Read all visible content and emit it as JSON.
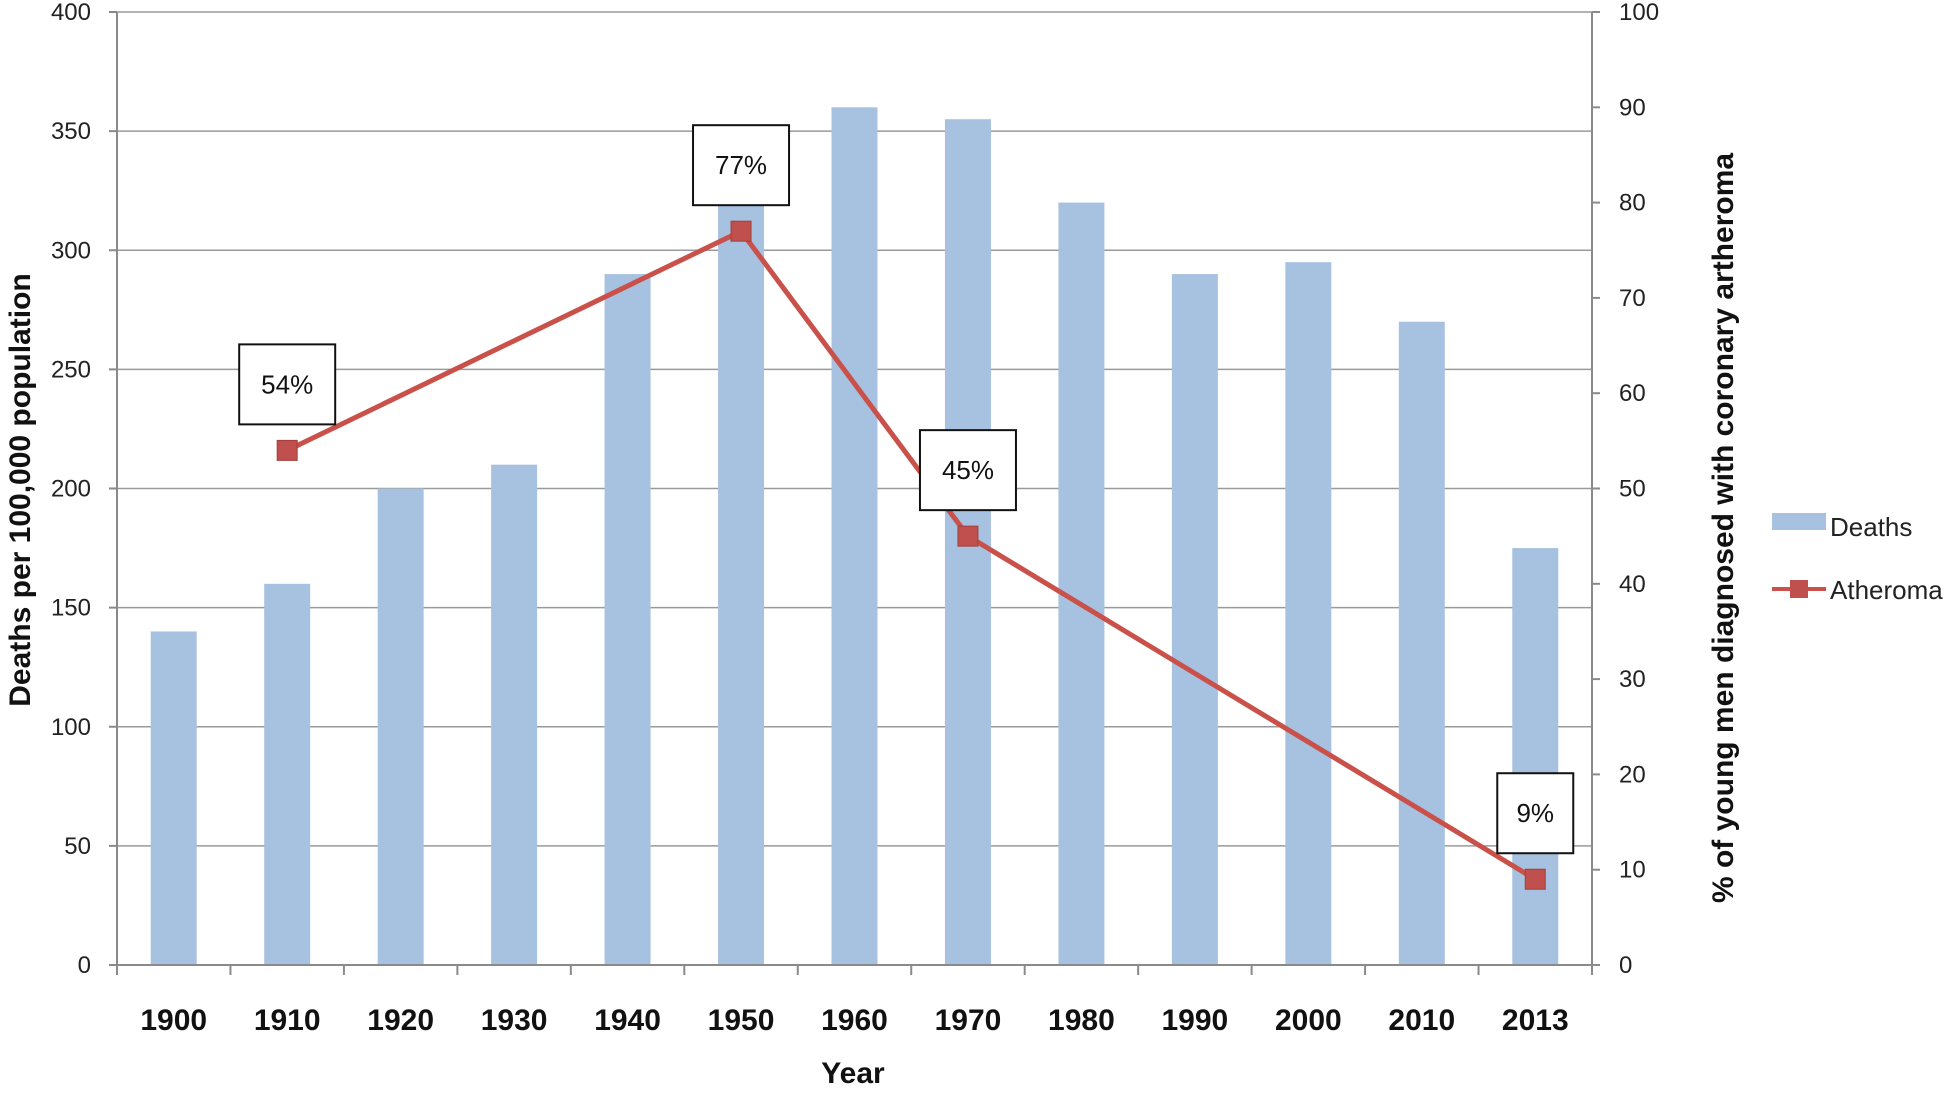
{
  "chart_data": {
    "type": "bar",
    "categories": [
      "1900",
      "1910",
      "1920",
      "1930",
      "1940",
      "1950",
      "1960",
      "1970",
      "1980",
      "1990",
      "2000",
      "2010",
      "2013"
    ],
    "series": [
      {
        "name": "Deaths",
        "type": "bar",
        "axis": "left",
        "color": "#a7c2e0",
        "values": [
          140,
          160,
          200,
          210,
          290,
          320,
          360,
          355,
          320,
          290,
          295,
          270,
          175
        ]
      },
      {
        "name": "Atheroma",
        "type": "line",
        "axis": "right",
        "color": "#c9514a",
        "points": [
          {
            "x": "1910",
            "y": 54
          },
          {
            "x": "1950",
            "y": 77
          },
          {
            "x": "1970",
            "y": 45
          },
          {
            "x": "2013",
            "y": 9
          }
        ]
      }
    ],
    "annotations": [
      {
        "x": "1910",
        "text": "54%"
      },
      {
        "x": "1950",
        "text": "77%"
      },
      {
        "x": "1970",
        "text": "45%"
      },
      {
        "x": "2013",
        "text": "9%"
      }
    ],
    "xlabel": "Year",
    "ylabel": "Deaths per 100,000 population",
    "y2label": "% of young men diagnosed with coronary artheroma",
    "ylim": [
      0,
      400
    ],
    "y2lim": [
      0,
      100
    ],
    "yticks": [
      0,
      50,
      100,
      150,
      200,
      250,
      300,
      350,
      400
    ],
    "y2ticks": [
      0,
      10,
      20,
      30,
      40,
      50,
      60,
      70,
      80,
      90,
      100
    ],
    "grid": true,
    "legend": "right"
  }
}
